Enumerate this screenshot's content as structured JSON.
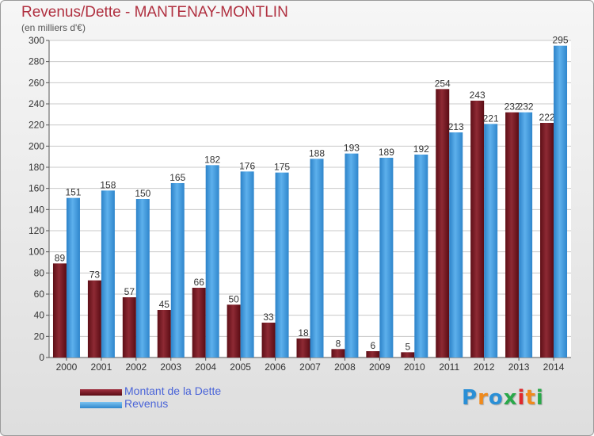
{
  "header": {
    "title": "Revenus/Dette - MANTENAY-MONTLIN",
    "subtitle": "(en milliers d'€)"
  },
  "chart_data": {
    "type": "bar",
    "categories": [
      "2000",
      "2001",
      "2002",
      "2003",
      "2004",
      "2005",
      "2006",
      "2007",
      "2008",
      "2009",
      "2010",
      "2011",
      "2012",
      "2013",
      "2014"
    ],
    "series": [
      {
        "name": "Montant de la Dette",
        "color": "#7a1c24",
        "values": [
          89,
          73,
          57,
          45,
          66,
          50,
          33,
          18,
          8,
          6,
          5,
          254,
          243,
          232,
          222
        ]
      },
      {
        "name": "Revenus",
        "color": "#4aa3e4",
        "values": [
          151,
          158,
          150,
          165,
          182,
          176,
          175,
          188,
          193,
          189,
          192,
          213,
          221,
          232,
          295
        ]
      }
    ],
    "ylim": [
      0,
      300
    ],
    "yticks": [
      0,
      20,
      40,
      60,
      80,
      100,
      120,
      140,
      160,
      180,
      200,
      220,
      240,
      260,
      280,
      300
    ],
    "grid": true,
    "legend_position": "bottom-left"
  },
  "legend": {
    "items": [
      {
        "label": "Montant de la Dette",
        "color": "#7a1c24"
      },
      {
        "label": "Revenus",
        "color": "#4aa3e4"
      }
    ]
  },
  "logo": {
    "letters": [
      {
        "ch": "P",
        "color": "#2a8fd6"
      },
      {
        "ch": "r",
        "color": "#f08a1c"
      },
      {
        "ch": "o",
        "color": "#2a8fd6"
      },
      {
        "ch": "x",
        "color": "#2aa84a"
      },
      {
        "ch": "i",
        "color": "#e0282c"
      },
      {
        "ch": "t",
        "color": "#f08a1c"
      },
      {
        "ch": "i",
        "color": "#2aa84a"
      }
    ]
  }
}
